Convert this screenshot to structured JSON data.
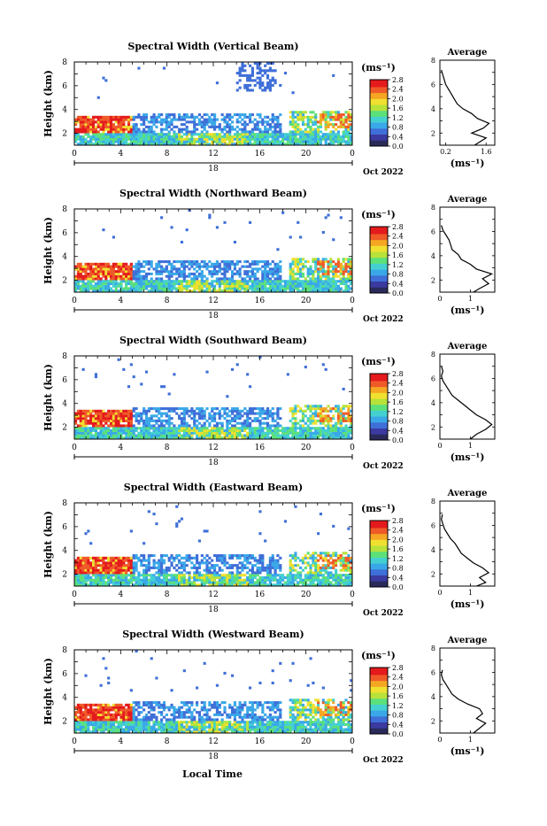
{
  "page": {
    "xlabel": "Local Time",
    "date_label": "Oct 2022",
    "day_label": "18",
    "colorbar_unit": "(ms⁻¹)",
    "profile_title": "Average",
    "profile_unit": "(ms⁻¹)",
    "ylabel": "Height (km)"
  },
  "colors": {
    "colormap": [
      "#2a2a5a",
      "#3a3aa0",
      "#3f6fd8",
      "#3aa8e8",
      "#44d0d0",
      "#5ce07a",
      "#b8e23a",
      "#f0e030",
      "#f5a623",
      "#ef5a28",
      "#e41a1c"
    ]
  },
  "chart_data": [
    {
      "type": "heatmap",
      "title": "Spectral Width (Vertical Beam)",
      "x_ticks": [
        "0",
        "4",
        "8",
        "12",
        "16",
        "20",
        "0"
      ],
      "xlim": [
        0,
        24
      ],
      "y_ticks": [
        "2",
        "4",
        "6",
        "8"
      ],
      "ylim": [
        1,
        8
      ],
      "colorbar_ticks": [
        "0.0",
        "0.4",
        "0.8",
        "1.2",
        "1.6",
        "2.0",
        "2.4",
        "2.8"
      ],
      "colorbar_range": [
        0,
        2.8
      ],
      "profile": {
        "x_ticks": [
          "0.2",
          "1.6"
        ],
        "xlim": [
          0,
          1.9
        ],
        "y_ticks": [
          "2",
          "4",
          "6",
          "8"
        ],
        "ylim": [
          1,
          8
        ],
        "points": [
          [
            1.2,
            1.0
          ],
          [
            1.4,
            1.3
          ],
          [
            1.6,
            1.6
          ],
          [
            1.1,
            2.0
          ],
          [
            1.5,
            2.4
          ],
          [
            1.7,
            2.8
          ],
          [
            1.3,
            3.2
          ],
          [
            1.1,
            3.6
          ],
          [
            0.8,
            4.0
          ],
          [
            0.6,
            4.4
          ],
          [
            0.5,
            4.8
          ],
          [
            0.4,
            5.2
          ],
          [
            0.3,
            5.6
          ],
          [
            0.2,
            6.0
          ],
          [
            0.15,
            6.4
          ],
          [
            0.1,
            6.8
          ],
          [
            0.05,
            7.2
          ]
        ]
      }
    },
    {
      "type": "heatmap",
      "title": "Spectral Width (Northward Beam)",
      "x_ticks": [
        "0",
        "4",
        "8",
        "12",
        "16",
        "20",
        "0"
      ],
      "xlim": [
        0,
        24
      ],
      "y_ticks": [
        "2",
        "4",
        "6",
        "8"
      ],
      "ylim": [
        1,
        8
      ],
      "colorbar_ticks": [
        "0.0",
        "0.4",
        "0.8",
        "1.2",
        "1.6",
        "2.0",
        "2.4",
        "2.8"
      ],
      "colorbar_range": [
        0,
        2.8
      ],
      "profile": {
        "x_ticks": [
          "0",
          "1"
        ],
        "xlim": [
          0,
          1.8
        ],
        "y_ticks": [
          "2",
          "4",
          "6",
          "8"
        ],
        "ylim": [
          1,
          8
        ],
        "points": [
          [
            1.1,
            1.0
          ],
          [
            1.3,
            1.3
          ],
          [
            1.6,
            1.7
          ],
          [
            1.4,
            2.1
          ],
          [
            1.7,
            2.5
          ],
          [
            1.2,
            2.9
          ],
          [
            1.0,
            3.3
          ],
          [
            0.7,
            3.7
          ],
          [
            0.6,
            4.1
          ],
          [
            0.4,
            4.5
          ],
          [
            0.35,
            4.9
          ],
          [
            0.3,
            5.3
          ],
          [
            0.2,
            5.7
          ],
          [
            0.1,
            6.1
          ],
          [
            0.05,
            6.5
          ]
        ]
      }
    },
    {
      "type": "heatmap",
      "title": "Spectral Width (Southward Beam)",
      "x_ticks": [
        "0",
        "4",
        "8",
        "12",
        "16",
        "20",
        "0"
      ],
      "xlim": [
        0,
        24
      ],
      "y_ticks": [
        "2",
        "4",
        "6",
        "8"
      ],
      "ylim": [
        1,
        8
      ],
      "colorbar_ticks": [
        "0.0",
        "0.4",
        "0.8",
        "1.2",
        "1.6",
        "2.0",
        "2.4",
        "2.8"
      ],
      "colorbar_range": [
        0,
        2.8
      ],
      "profile": {
        "x_ticks": [
          "0",
          "1"
        ],
        "xlim": [
          0,
          1.8
        ],
        "y_ticks": [
          "2",
          "4",
          "6",
          "8"
        ],
        "ylim": [
          1,
          8
        ],
        "points": [
          [
            1.0,
            1.0
          ],
          [
            1.2,
            1.4
          ],
          [
            1.5,
            1.8
          ],
          [
            1.7,
            2.2
          ],
          [
            1.5,
            2.6
          ],
          [
            1.2,
            3.0
          ],
          [
            1.0,
            3.4
          ],
          [
            0.8,
            3.8
          ],
          [
            0.6,
            4.2
          ],
          [
            0.4,
            4.6
          ],
          [
            0.3,
            5.0
          ],
          [
            0.2,
            5.4
          ],
          [
            0.1,
            5.8
          ],
          [
            0.05,
            6.2
          ],
          [
            0.1,
            6.6
          ],
          [
            0.05,
            7.0
          ]
        ]
      }
    },
    {
      "type": "heatmap",
      "title": "Spectral Width (Eastward Beam)",
      "x_ticks": [
        "0",
        "4",
        "8",
        "12",
        "16",
        "20",
        "0"
      ],
      "xlim": [
        0,
        24
      ],
      "y_ticks": [
        "2",
        "4",
        "6",
        "8"
      ],
      "ylim": [
        1,
        8
      ],
      "colorbar_ticks": [
        "0.0",
        "0.4",
        "0.8",
        "1.2",
        "1.6",
        "2.0",
        "2.4",
        "2.8"
      ],
      "colorbar_range": [
        0,
        2.8
      ],
      "profile": {
        "x_ticks": [
          "0",
          "1"
        ],
        "xlim": [
          0,
          1.8
        ],
        "y_ticks": [
          "2",
          "4",
          "6",
          "8"
        ],
        "ylim": [
          1,
          8
        ],
        "points": [
          [
            1.2,
            1.0
          ],
          [
            1.5,
            1.3
          ],
          [
            1.3,
            1.7
          ],
          [
            1.6,
            2.1
          ],
          [
            1.4,
            2.5
          ],
          [
            1.1,
            2.9
          ],
          [
            0.9,
            3.3
          ],
          [
            0.7,
            3.7
          ],
          [
            0.6,
            4.1
          ],
          [
            0.5,
            4.5
          ],
          [
            0.35,
            4.9
          ],
          [
            0.25,
            5.3
          ],
          [
            0.15,
            5.7
          ],
          [
            0.1,
            6.1
          ],
          [
            0.05,
            6.5
          ],
          [
            0.08,
            6.9
          ]
        ]
      }
    },
    {
      "type": "heatmap",
      "title": "Spectral Width (Westward Beam)",
      "x_ticks": [
        "0",
        "4",
        "8",
        "12",
        "16",
        "20",
        "0"
      ],
      "xlim": [
        0,
        24
      ],
      "y_ticks": [
        "2",
        "4",
        "6",
        "8"
      ],
      "ylim": [
        1,
        8
      ],
      "colorbar_ticks": [
        "0.0",
        "0.4",
        "0.8",
        "1.2",
        "1.6",
        "2.0",
        "2.4",
        "2.8"
      ],
      "colorbar_range": [
        0,
        2.8
      ],
      "profile": {
        "x_ticks": [
          "0",
          "1"
        ],
        "xlim": [
          0,
          1.8
        ],
        "y_ticks": [
          "2",
          "4",
          "6",
          "8"
        ],
        "ylim": [
          1,
          8
        ],
        "points": [
          [
            1.1,
            1.0
          ],
          [
            1.3,
            1.4
          ],
          [
            1.5,
            1.8
          ],
          [
            1.2,
            2.2
          ],
          [
            1.4,
            2.6
          ],
          [
            1.3,
            3.0
          ],
          [
            0.9,
            3.4
          ],
          [
            0.6,
            3.8
          ],
          [
            0.4,
            4.2
          ],
          [
            0.3,
            4.6
          ],
          [
            0.2,
            5.0
          ],
          [
            0.1,
            5.4
          ],
          [
            0.05,
            5.8
          ],
          [
            0.08,
            6.2
          ]
        ]
      }
    }
  ]
}
